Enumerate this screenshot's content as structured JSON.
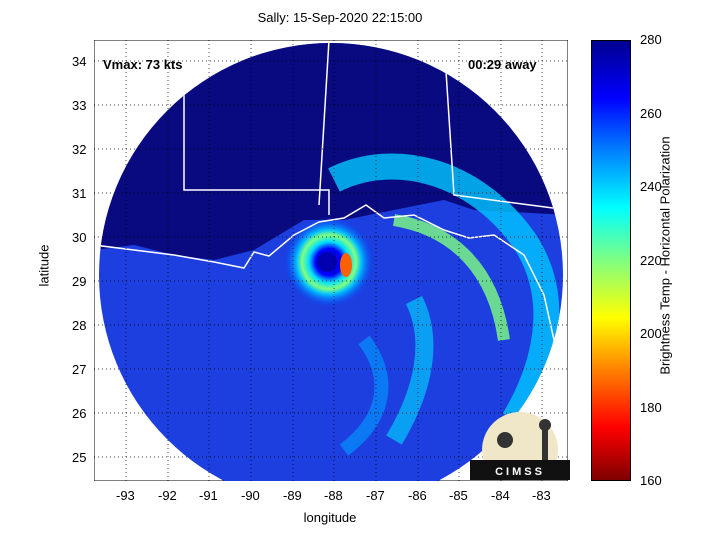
{
  "title": "Sally: 15-Sep-2020 22:15:00",
  "vmax_label": "Vmax: 73 kts",
  "time_label": "00:29 away",
  "xlabel": "longitude",
  "ylabel": "latitude",
  "colorbar_label": "Brightness Temp - Horizontal Polarization",
  "x_ticks": [
    "-93",
    "-92",
    "-91",
    "-90",
    "-89",
    "-88",
    "-87",
    "-86",
    "-85",
    "-84",
    "-83"
  ],
  "y_ticks": [
    "34",
    "33",
    "32",
    "31",
    "30",
    "29",
    "28",
    "27",
    "26",
    "25"
  ],
  "cb_ticks": [
    "280",
    "260",
    "240",
    "220",
    "200",
    "180",
    "160"
  ],
  "logo_text": "CIMSS"
}
